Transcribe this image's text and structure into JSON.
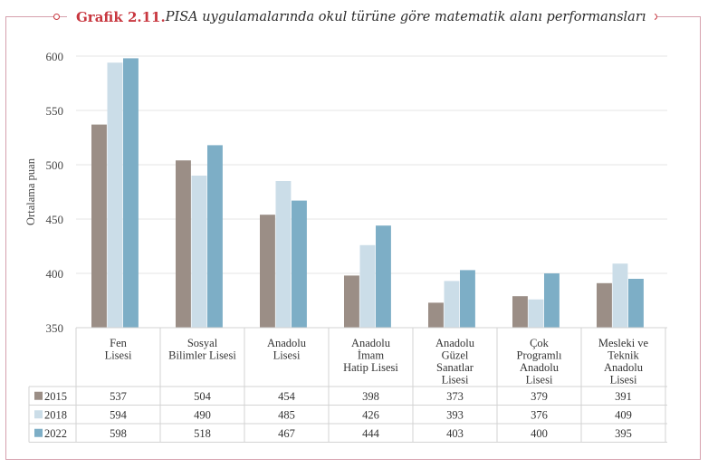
{
  "title": {
    "number": "Grafik 2.11.",
    "text": " PISA uygulamalarında okul türüne göre matematik alanı performansları"
  },
  "colors": {
    "accent": "#c8373f",
    "border": "#d6a0ad",
    "series": [
      "#9b8e86",
      "#cbdde8",
      "#7daec6"
    ]
  },
  "chart_data": {
    "type": "bar",
    "ylabel": "Ortalama puan",
    "ylim": [
      350,
      600
    ],
    "yticks": [
      350,
      400,
      450,
      500,
      550,
      600
    ],
    "grid": true,
    "categories": [
      [
        "Fen",
        "Lisesi"
      ],
      [
        "Sosyal",
        "Bilimler Lisesi"
      ],
      [
        "Anadolu",
        "Lisesi"
      ],
      [
        "Anadolu",
        "İmam",
        "Hatip Lisesi"
      ],
      [
        "Anadolu",
        "Güzel",
        "Sanatlar",
        "Lisesi"
      ],
      [
        "Çok",
        "Programlı",
        "Anadolu",
        "Lisesi"
      ],
      [
        "Mesleki ve",
        "Teknik",
        "Anadolu",
        "Lisesi"
      ]
    ],
    "series": [
      {
        "name": "2015",
        "values": [
          537,
          504,
          454,
          398,
          373,
          379,
          391
        ]
      },
      {
        "name": "2018",
        "values": [
          594,
          490,
          485,
          426,
          393,
          376,
          409
        ]
      },
      {
        "name": "2022",
        "values": [
          598,
          518,
          467,
          444,
          403,
          400,
          395
        ]
      }
    ]
  }
}
